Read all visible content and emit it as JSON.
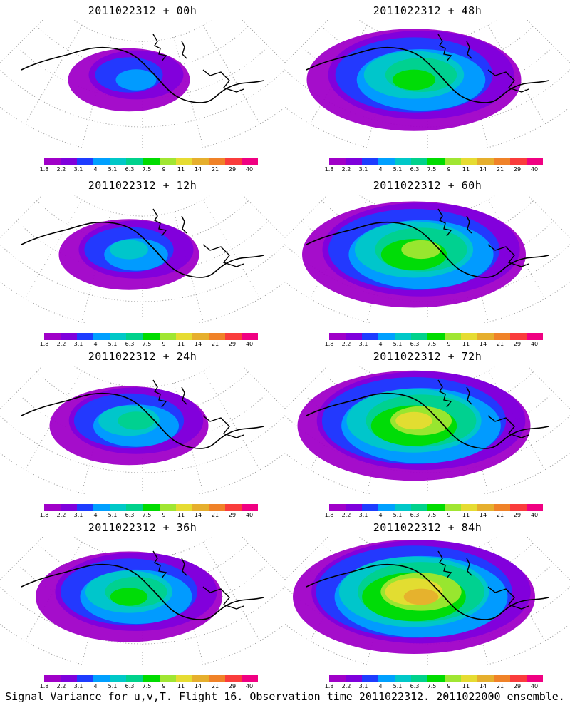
{
  "panels": [
    {
      "title": "2011022312 + 00h",
      "spread": 0.35,
      "max_level": 4
    },
    {
      "title": "2011022312 + 48h",
      "spread": 0.85,
      "max_level": 7
    },
    {
      "title": "2011022312 + 12h",
      "spread": 0.45,
      "max_level": 5
    },
    {
      "title": "2011022312 + 60h",
      "spread": 0.9,
      "max_level": 8
    },
    {
      "title": "2011022312 + 24h",
      "spread": 0.55,
      "max_level": 6
    },
    {
      "title": "2011022312 + 72h",
      "spread": 0.95,
      "max_level": 9
    },
    {
      "title": "2011022312 + 36h",
      "spread": 0.7,
      "max_level": 7
    },
    {
      "title": "2011022312 + 84h",
      "spread": 1.0,
      "max_level": 10
    }
  ],
  "colorbar": {
    "colors": [
      "#a000c8",
      "#7f00dc",
      "#1e3cff",
      "#00a0ff",
      "#00c8c8",
      "#00d28c",
      "#00dc00",
      "#a0e632",
      "#e6dc32",
      "#e6af2d",
      "#f08228",
      "#fa3c3c",
      "#f00082"
    ],
    "ticks": [
      "1.8",
      "2.2",
      "3.1",
      "4",
      "5.1",
      "6.3",
      "7.5",
      "9",
      "11",
      "14",
      "21",
      "29",
      "40"
    ]
  },
  "caption": "Signal Variance for u,v,T. Flight 16. Observation time 2011022312. 2011022000 ensemble."
}
